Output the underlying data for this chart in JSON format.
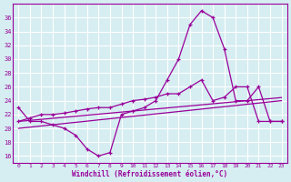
{
  "xlabel": "Windchill (Refroidissement éolien,°C)",
  "background_color": "#d6eef2",
  "grid_color": "#ffffff",
  "line_color": "#990099",
  "x_hours": [
    0,
    1,
    2,
    3,
    4,
    5,
    6,
    7,
    8,
    9,
    10,
    11,
    12,
    13,
    14,
    15,
    16,
    17,
    18,
    19,
    20,
    21,
    22,
    23
  ],
  "series_A": [
    23,
    21,
    21,
    20.5,
    20,
    19,
    17,
    16,
    16.5,
    22,
    22.5,
    23,
    24,
    27,
    30,
    35,
    37,
    36,
    31.5,
    24,
    24,
    26,
    21,
    21
  ],
  "series_B": [
    21,
    21.5,
    22,
    22,
    22.2,
    22.5,
    22.8,
    23,
    23,
    23.5,
    24,
    24.2,
    24.5,
    25,
    25,
    26,
    27,
    24,
    24.5,
    26,
    26,
    21,
    21,
    21
  ],
  "series_line1": [
    21,
    21.15,
    21.3,
    21.45,
    21.6,
    21.75,
    21.9,
    22.05,
    22.2,
    22.35,
    22.5,
    22.65,
    22.8,
    22.95,
    23.1,
    23.25,
    23.4,
    23.55,
    23.7,
    23.85,
    24.0,
    24.15,
    24.3,
    24.45
  ],
  "series_line2": [
    20.0,
    20.17,
    20.35,
    20.52,
    20.7,
    20.87,
    21.04,
    21.22,
    21.39,
    21.57,
    21.74,
    21.91,
    22.09,
    22.26,
    22.43,
    22.61,
    22.78,
    22.96,
    23.13,
    23.3,
    23.48,
    23.65,
    23.83,
    24.0
  ],
  "ylim": [
    15,
    38
  ],
  "yticks": [
    16,
    18,
    20,
    22,
    24,
    26,
    28,
    30,
    32,
    34,
    36
  ],
  "xlim_min": -0.5,
  "xlim_max": 23.5,
  "xticks": [
    0,
    1,
    2,
    3,
    4,
    5,
    6,
    7,
    8,
    9,
    10,
    11,
    12,
    13,
    14,
    15,
    16,
    17,
    18,
    19,
    20,
    21,
    22,
    23
  ]
}
